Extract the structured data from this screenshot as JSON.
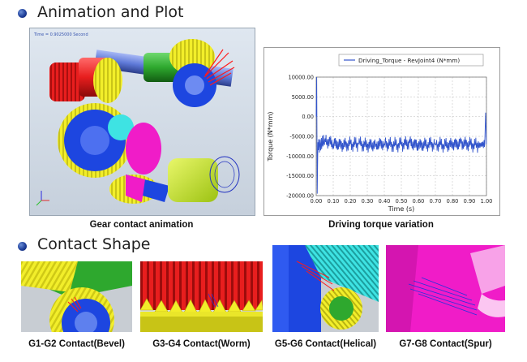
{
  "sections": {
    "animation_title": "Animation and Plot",
    "contact_title": "Contact Shape"
  },
  "animation_panel": {
    "time_readout": "Time = 0.9025000 Second"
  },
  "captions": {
    "gear_animation": "Gear contact animation",
    "torque_plot": "Driving torque variation",
    "g1g2": "G1-G2 Contact(Bevel)",
    "g3g4": "G3-G4 Contact(Worm)",
    "g5g6": "G5-G6 Contact(Helical)",
    "g7g8": "G7-G8 Contact(Spur)"
  },
  "colors": {
    "bullet": "#1f3f9a",
    "plot_series": "#3355cc",
    "gear_red": "#e81e1e",
    "gear_yellow": "#f2ee2a",
    "gear_blue": "#1d46e0",
    "gear_green": "#2ea82e",
    "gear_magenta": "#f01cc8",
    "gear_cyan": "#3ee3e3"
  },
  "chart_data": {
    "type": "line",
    "title": "",
    "legend": [
      "Driving_Torque - RevJoint4 (N*mm)"
    ],
    "xlabel": "Time (s)",
    "ylabel": "Torque (N*mm)",
    "xlim": [
      0,
      1
    ],
    "ylim": [
      -20000,
      10000
    ],
    "xticks": [
      "0.00",
      "0.10",
      "0.20",
      "0.30",
      "0.40",
      "0.50",
      "0.60",
      "0.70",
      "0.80",
      "0.90",
      "1.00"
    ],
    "yticks": [
      "10000.00",
      "5000.00",
      "0.00",
      "-5000.00",
      "-10000.00",
      "-15000.00",
      "-20000.00"
    ],
    "legend_position": "top",
    "grid": true,
    "series": [
      {
        "name": "Driving_Torque - RevJoint4",
        "x": [
          0.0,
          0.003,
          0.006,
          0.01,
          0.02,
          0.05,
          0.1,
          0.15,
          0.2,
          0.25,
          0.3,
          0.35,
          0.4,
          0.45,
          0.5,
          0.55,
          0.6,
          0.65,
          0.7,
          0.75,
          0.8,
          0.85,
          0.9,
          0.95,
          0.99,
          0.995,
          1.0
        ],
        "y": [
          0,
          10000,
          -19500,
          -6500,
          -7500,
          -6000,
          -6800,
          -7200,
          -7000,
          -6900,
          -7300,
          -7100,
          -6800,
          -7200,
          -7000,
          -6700,
          -7300,
          -7000,
          -6900,
          -7200,
          -7100,
          -6800,
          -7000,
          -7300,
          -6900,
          1000,
          -7000
        ]
      }
    ]
  }
}
